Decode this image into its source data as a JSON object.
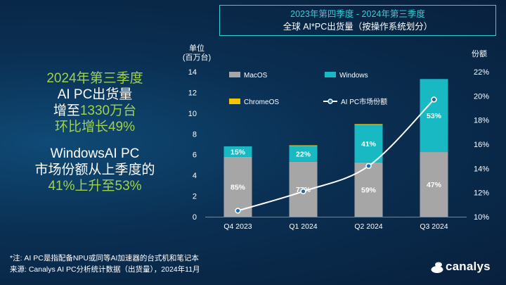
{
  "title": {
    "line1": "2023年第四季度 - 2024年第三季度",
    "line2": "全球 AI*PC出货量（按操作系统划分）"
  },
  "left_panel": {
    "block1": [
      {
        "parts": [
          {
            "text": "2024年第三季度",
            "color": "green"
          }
        ]
      },
      {
        "parts": [
          {
            "text": "AI PC出货量",
            "color": "white"
          }
        ]
      },
      {
        "parts": [
          {
            "text": "增至",
            "color": "white"
          },
          {
            "text": "1330万台",
            "color": "green"
          }
        ]
      },
      {
        "parts": [
          {
            "text": "环比增长49%",
            "color": "green"
          }
        ]
      }
    ],
    "block2": [
      {
        "parts": [
          {
            "text": "WindowsAI PC",
            "color": "white"
          }
        ]
      },
      {
        "parts": [
          {
            "text": "市场份额从上季度的",
            "color": "white"
          }
        ]
      },
      {
        "parts": [
          {
            "text": "41%上升至53%",
            "color": "green"
          }
        ]
      }
    ]
  },
  "footnote": {
    "line1": "*注: AI PC是指配备NPU或同等AI加速器的台式机和笔记本",
    "line2": "来源: Canalys AI PC分析统计数据（出货量），2024年11月"
  },
  "logo": {
    "text": "canalys"
  },
  "colors": {
    "macos": "#a6a6a6",
    "windows": "#19b9c3",
    "chromeos": "#f5c400",
    "share_line": "#ffffff",
    "accent": "#2fd0d6",
    "highlight": "#9fd24a"
  },
  "chart_data": {
    "type": "bar",
    "stacked": true,
    "categories": [
      "Q4 2023",
      "Q1 2024",
      "Q2 2024",
      "Q3 2024"
    ],
    "series": [
      {
        "name": "MacOS",
        "values": [
          5.78,
          5.31,
          5.25,
          6.25
        ],
        "labels": [
          "85%",
          "77%",
          "59%",
          "47%"
        ],
        "color": "#a6a6a6"
      },
      {
        "name": "Windows",
        "values": [
          1.02,
          1.52,
          3.61,
          7.05
        ],
        "labels": [
          "15%",
          "22%",
          "41%",
          "53%"
        ],
        "color": "#19b9c3"
      },
      {
        "name": "ChromeOS",
        "values": [
          0.0,
          0.07,
          0.09,
          0.0
        ],
        "labels": [
          "",
          "",
          "",
          ""
        ],
        "color": "#f5c400"
      }
    ],
    "line_series": {
      "name": "AI PC市场份额",
      "values": [
        10.5,
        12.1,
        14.2,
        19.7
      ],
      "axis": "right"
    },
    "ylabel_left_line1": "单位",
    "ylabel_left_line2": "(百万台)",
    "ylabel_right": "份额",
    "ylim_left": [
      0,
      14
    ],
    "yticks_left": [
      0,
      2,
      4,
      6,
      8,
      10,
      12,
      14
    ],
    "ylim_right": [
      10,
      22
    ],
    "yticks_right": [
      10,
      12,
      14,
      16,
      18,
      20,
      22
    ],
    "yticks_right_labels": [
      "10%",
      "12%",
      "14%",
      "16%",
      "18%",
      "20%",
      "22%"
    ],
    "legend": [
      {
        "name": "MacOS",
        "kind": "square",
        "color": "#a6a6a6"
      },
      {
        "name": "Windows",
        "kind": "square",
        "color": "#19b9c3"
      },
      {
        "name": "ChromeOS",
        "kind": "square",
        "color": "#f5c400"
      },
      {
        "name": "AI PC市场份额",
        "kind": "line",
        "color": "#ffffff"
      }
    ],
    "legend_position": "top-left",
    "grid": false
  }
}
